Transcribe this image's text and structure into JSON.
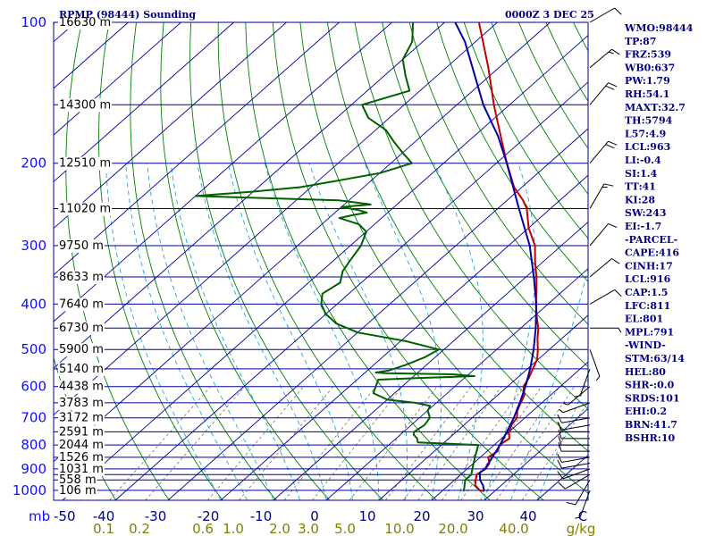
{
  "header": {
    "station": "RPMP (98444) Sounding",
    "time": "0000Z  3 DEC 25"
  },
  "chart_data": {
    "type": "line",
    "title": "RPMP (98444) Sounding",
    "xlabel": "",
    "ylabel": "mb",
    "xlim": [
      -50,
      50
    ],
    "ylim": [
      1050,
      100
    ],
    "pressure_labels": [
      "100",
      "200",
      "300",
      "400",
      "500",
      "600",
      "700",
      "800",
      "900",
      "1000"
    ],
    "pressure_levels": [
      100,
      150,
      200,
      250,
      300,
      350,
      400,
      450,
      500,
      550,
      600,
      650,
      700,
      750,
      800,
      850,
      900,
      925,
      950,
      1000
    ],
    "height_labels": [
      {
        "p": 100,
        "label": "16630 m"
      },
      {
        "p": 150,
        "label": "14300 m"
      },
      {
        "p": 200,
        "label": "12510 m"
      },
      {
        "p": 250,
        "label": "11020 m"
      },
      {
        "p": 300,
        "label": "9750 m"
      },
      {
        "p": 350,
        "label": "8633 m"
      },
      {
        "p": 400,
        "label": "7640 m"
      },
      {
        "p": 450,
        "label": "6730 m"
      },
      {
        "p": 500,
        "label": "5900 m"
      },
      {
        "p": 550,
        "label": "5140 m"
      },
      {
        "p": 600,
        "label": "4438 m"
      },
      {
        "p": 650,
        "label": "3783 m"
      },
      {
        "p": 700,
        "label": "3172 m"
      },
      {
        "p": 750,
        "label": "2591 m"
      },
      {
        "p": 800,
        "label": "2044 m"
      },
      {
        "p": 850,
        "label": "1526 m"
      },
      {
        "p": 900,
        "label": "1031 m"
      },
      {
        "p": 950,
        "label": "558 m"
      },
      {
        "p": 1000,
        "label": "106 m"
      }
    ],
    "temp_ticks": [
      "-50",
      "-40",
      "-30",
      "-20",
      "-10",
      "0",
      "10",
      "20",
      "30",
      "40",
      "C"
    ],
    "mixing_ratio_ticks": [
      "0.1",
      "0.2",
      "0.6",
      "1.0",
      "2.0",
      "3.0",
      "5.0",
      "10.0",
      "20.0",
      "40.0",
      "g/kg"
    ],
    "series": [
      {
        "kind": "temperature",
        "color": "#c00000",
        "points": [
          [
            1004,
            28
          ],
          [
            1000,
            27
          ],
          [
            975,
            25
          ],
          [
            950,
            24
          ],
          [
            925,
            23
          ],
          [
            900,
            23.5
          ],
          [
            875,
            23
          ],
          [
            850,
            21.5
          ],
          [
            825,
            22
          ],
          [
            800,
            21
          ],
          [
            775,
            21.5
          ],
          [
            750,
            20
          ],
          [
            725,
            19
          ],
          [
            700,
            18.5
          ],
          [
            675,
            17
          ],
          [
            650,
            16
          ],
          [
            625,
            15
          ],
          [
            600,
            13
          ],
          [
            575,
            12.2
          ],
          [
            550,
            11
          ],
          [
            525,
            9.8
          ],
          [
            500,
            7.8
          ],
          [
            475,
            5.5
          ],
          [
            450,
            3.3
          ],
          [
            425,
            0.5
          ],
          [
            400,
            -2.3
          ],
          [
            375,
            -5
          ],
          [
            350,
            -8
          ],
          [
            325,
            -11.5
          ],
          [
            300,
            -15
          ],
          [
            275,
            -20
          ],
          [
            250,
            -24.5
          ],
          [
            240,
            -27
          ],
          [
            225,
            -31.5
          ],
          [
            200,
            -38
          ],
          [
            175,
            -45
          ],
          [
            150,
            -53
          ],
          [
            125,
            -62
          ],
          [
            100,
            -73.5
          ],
          [
            95,
            -75
          ],
          [
            90,
            -76
          ],
          [
            85,
            -78
          ]
        ]
      },
      {
        "kind": "dewpoint",
        "color": "#006000",
        "points": [
          [
            1004,
            24
          ],
          [
            1000,
            24
          ],
          [
            950,
            22
          ],
          [
            925,
            22
          ],
          [
            900,
            21
          ],
          [
            850,
            19
          ],
          [
            825,
            18
          ],
          [
            800,
            17
          ],
          [
            790,
            5
          ],
          [
            775,
            4
          ],
          [
            760,
            2.5
          ],
          [
            750,
            2
          ],
          [
            725,
            2.5
          ],
          [
            700,
            2
          ],
          [
            675,
            0
          ],
          [
            660,
            -0.5
          ],
          [
            650,
            -4
          ],
          [
            640,
            -10
          ],
          [
            620,
            -14
          ],
          [
            600,
            -15
          ],
          [
            580,
            -16
          ],
          [
            575,
            -8
          ],
          [
            572,
            -2
          ],
          [
            570,
            1.5
          ],
          [
            565,
            -3
          ],
          [
            562,
            -16
          ],
          [
            560,
            -18
          ],
          [
            555,
            -16
          ],
          [
            540,
            -14
          ],
          [
            520,
            -12
          ],
          [
            500,
            -11
          ],
          [
            480,
            -19
          ],
          [
            460,
            -30
          ],
          [
            440,
            -36
          ],
          [
            420,
            -40
          ],
          [
            400,
            -43
          ],
          [
            380,
            -45
          ],
          [
            360,
            -44
          ],
          [
            340,
            -46
          ],
          [
            320,
            -47
          ],
          [
            300,
            -48
          ],
          [
            280,
            -50
          ],
          [
            270,
            -53
          ],
          [
            262,
            -58
          ],
          [
            258,
            -56
          ],
          [
            255,
            -54
          ],
          [
            252,
            -56
          ],
          [
            248,
            -60
          ],
          [
            245,
            -55
          ],
          [
            242,
            -59
          ],
          [
            240,
            -62
          ],
          [
            235,
            -90
          ],
          [
            230,
            -80
          ],
          [
            225,
            -72
          ],
          [
            220,
            -68
          ],
          [
            210,
            -60
          ],
          [
            200,
            -56
          ],
          [
            190,
            -60
          ],
          [
            180,
            -64
          ],
          [
            170,
            -68
          ],
          [
            160,
            -74
          ],
          [
            150,
            -78
          ],
          [
            140,
            -72
          ],
          [
            130,
            -76
          ],
          [
            120,
            -80
          ],
          [
            110,
            -82
          ],
          [
            100,
            -86
          ],
          [
            90,
            -90
          ],
          [
            85,
            -92
          ]
        ]
      },
      {
        "kind": "parcel",
        "color": "#0000a0",
        "points": [
          [
            1004,
            28
          ],
          [
            975,
            26.5
          ],
          [
            950,
            24.8
          ],
          [
            916,
            23.2
          ],
          [
            900,
            23.4
          ],
          [
            850,
            22.3
          ],
          [
            800,
            21.1
          ],
          [
            750,
            19.6
          ],
          [
            700,
            17.9
          ],
          [
            650,
            15.8
          ],
          [
            600,
            13.4
          ],
          [
            550,
            10.5
          ],
          [
            500,
            7
          ],
          [
            450,
            2.8
          ],
          [
            400,
            -2.2
          ],
          [
            350,
            -8.5
          ],
          [
            300,
            -16
          ],
          [
            250,
            -26
          ],
          [
            200,
            -38
          ],
          [
            175,
            -45.5
          ],
          [
            150,
            -55
          ],
          [
            125,
            -65
          ],
          [
            110,
            -72
          ],
          [
            100,
            -78
          ],
          [
            90,
            -84
          ]
        ]
      }
    ],
    "wind_barbs": [
      {
        "p": 1000,
        "dir": 200,
        "spd": 5
      },
      {
        "p": 950,
        "dir": 210,
        "spd": 10
      },
      {
        "p": 925,
        "dir": 240,
        "spd": 10
      },
      {
        "p": 900,
        "dir": 250,
        "spd": 10
      },
      {
        "p": 875,
        "dir": 260,
        "spd": 10
      },
      {
        "p": 850,
        "dir": 260,
        "spd": 10
      },
      {
        "p": 825,
        "dir": 270,
        "spd": 10
      },
      {
        "p": 800,
        "dir": 270,
        "spd": 10
      },
      {
        "p": 775,
        "dir": 270,
        "spd": 10
      },
      {
        "p": 750,
        "dir": 270,
        "spd": 10
      },
      {
        "p": 725,
        "dir": 260,
        "spd": 10
      },
      {
        "p": 700,
        "dir": 260,
        "spd": 10
      },
      {
        "p": 650,
        "dir": 250,
        "spd": 5
      },
      {
        "p": 600,
        "dir": 230,
        "spd": 5
      },
      {
        "p": 550,
        "dir": 200,
        "spd": 5
      },
      {
        "p": 500,
        "dir": 160,
        "spd": 5
      },
      {
        "p": 450,
        "dir": 90,
        "spd": 5
      },
      {
        "p": 400,
        "dir": 60,
        "spd": 10
      },
      {
        "p": 350,
        "dir": 50,
        "spd": 10
      },
      {
        "p": 300,
        "dir": 40,
        "spd": 10
      },
      {
        "p": 250,
        "dir": 30,
        "spd": 15
      },
      {
        "p": 200,
        "dir": 40,
        "spd": 20
      },
      {
        "p": 150,
        "dir": 40,
        "spd": 20
      },
      {
        "p": 125,
        "dir": 50,
        "spd": 15
      },
      {
        "p": 100,
        "dir": 60,
        "spd": 10
      }
    ]
  },
  "indices": [
    "WMO:98444",
    "TP:87",
    "FRZ:539",
    "WB0:637",
    "PW:1.79",
    "RH:54.1",
    "MAXT:32.7",
    "TH:5794",
    "L57:4.9",
    "LCL:963",
    "LI:-0.4",
    "SI:1.4",
    "TT:41",
    "KI:28",
    "SW:243",
    "EI:-1.7",
    "-PARCEL-",
    "CAPE:416",
    "CINH:17",
    "LCL:916",
    "CAP:1.5",
    "LFC:811",
    "EL:801",
    "MPL:791",
    "-WIND-",
    "STM:63/14",
    "HEL:80",
    "SHR-:0.0",
    "SRDS:101",
    "EHI:0.2",
    "BRN:41.7",
    "BSHR:10"
  ],
  "colors": {
    "isobar": "#0000a0",
    "isotherm": "#0000a0",
    "dry_adiabat": "#008000",
    "moist_adiabat": "#1fa8e0",
    "mixing_ratio": "#808000",
    "header": "#000080"
  }
}
